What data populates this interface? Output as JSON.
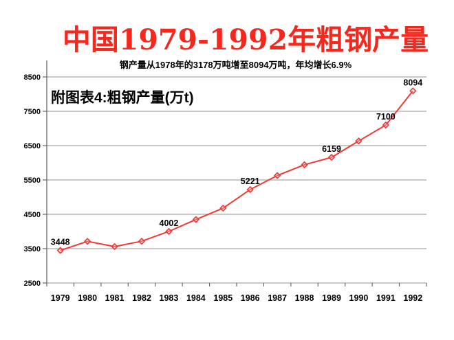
{
  "title": {
    "text": "中国1979-1992年粗钢产量",
    "color": "#f6281e"
  },
  "subtitle": {
    "text": "钢产量从1978年的3178万吨增至8094万吨，年均增长6.9%"
  },
  "chart_label": {
    "text": "附图表4:粗钢产量(万t)"
  },
  "colors": {
    "line": "#ef3a36",
    "grid": "#a8a8a8",
    "axis": "#666666",
    "text": "#000000",
    "background": "#ffffff"
  },
  "chart_data": {
    "type": "line",
    "title": "中国1979-1992年粗钢产量",
    "subtitle": "钢产量从1978年的3178万吨增至8094万吨，年均增长6.9%",
    "series_label": "附图表4:粗钢产量(万t)",
    "categories": [
      "1979",
      "1980",
      "1981",
      "1982",
      "1983",
      "1984",
      "1985",
      "1986",
      "1987",
      "1988",
      "1989",
      "1990",
      "1991",
      "1992"
    ],
    "series": [
      {
        "name": "粗钢产量(万t)",
        "values": [
          3448,
          3712,
          3560,
          3716,
          4002,
          4347,
          4679,
          5221,
          5628,
          5943,
          6159,
          6635,
          7100,
          8094
        ]
      }
    ],
    "point_labels": [
      "3448",
      null,
      null,
      null,
      "4002",
      null,
      null,
      "5221",
      null,
      null,
      "6159",
      null,
      "7100",
      "8094"
    ],
    "xlabel": "",
    "ylabel": "",
    "ylim": [
      2500,
      8500
    ],
    "yticks": [
      2500,
      3500,
      4500,
      5500,
      6500,
      7500,
      8500
    ],
    "grid": "horizontal gridlines on, every 1000",
    "legend": "none",
    "marker": "diamond"
  }
}
